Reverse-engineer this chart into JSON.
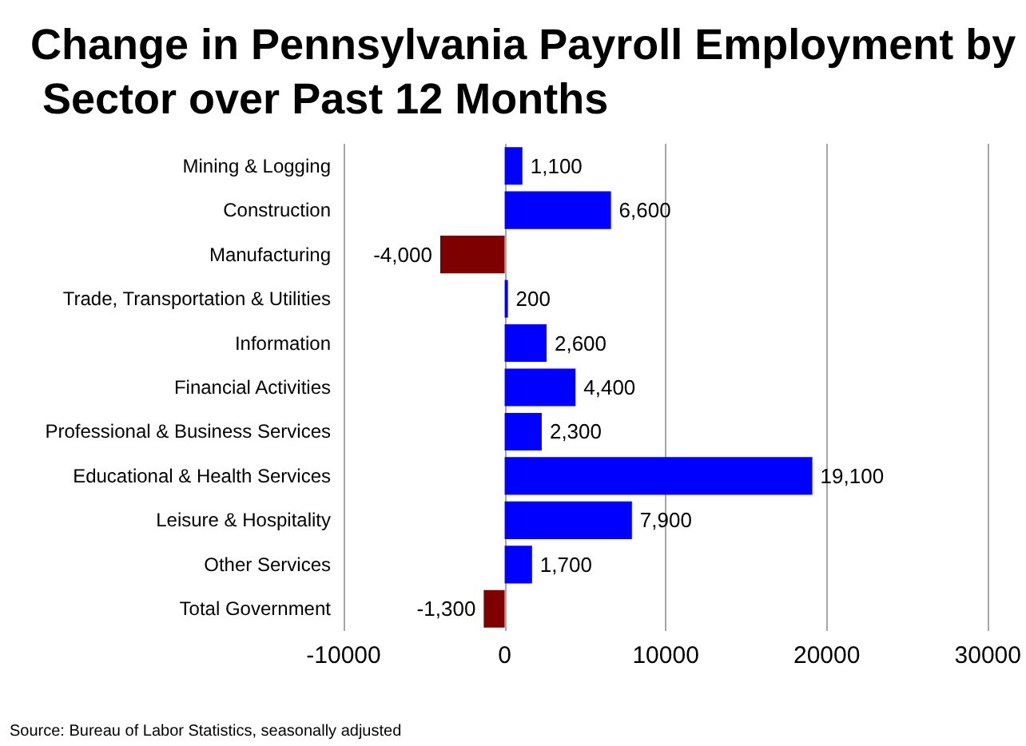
{
  "chart_data": {
    "type": "bar",
    "orientation": "horizontal",
    "title": "Change in Pennsylvania Payroll Employment by Sector over Past 12 Months",
    "categories": [
      "Mining & Logging",
      "Construction",
      "Manufacturing",
      "Trade, Transportation & Utilities",
      "Information",
      "Financial Activities",
      "Professional & Business Services",
      "Educational & Health Services",
      "Leisure & Hospitality",
      "Other Services",
      "Total Government"
    ],
    "values": [
      1100,
      6600,
      -4000,
      200,
      2600,
      4400,
      2300,
      19100,
      7900,
      1700,
      -1300
    ],
    "colors": [
      "#0000ff",
      "#0000ff",
      "#7f0000",
      "#0000ff",
      "#0000ff",
      "#0000ff",
      "#0000ff",
      "#0000ff",
      "#0000ff",
      "#0000ff",
      "#7f0000"
    ],
    "value_labels": [
      "1,100",
      "6,600",
      "-4,000",
      "200",
      "2,600",
      "4,400",
      "2,300",
      "19,100",
      "7,900",
      "1,700",
      "-1,300"
    ],
    "xlim": [
      -10000,
      30000
    ],
    "xticks": [
      -10000,
      0,
      10000,
      20000,
      30000
    ],
    "grid": "x",
    "annotations": [
      "Source: Bureau of Labor Statistics, seasonally adjusted"
    ]
  }
}
